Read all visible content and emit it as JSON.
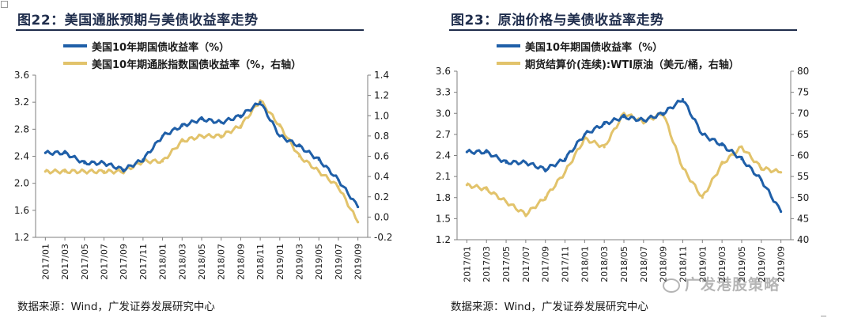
{
  "charts": [
    {
      "title": "图22：美国通胀预期与美债收益率走势",
      "source": "数据来源：Wind，广发证券发展研究中心",
      "colors": {
        "blue": "#1f5fa8",
        "gold": "#e2c36b"
      }
    },
    {
      "title": "图23：原油价格与美债收益率走势",
      "source": "数据来源：Wind，广发证券发展研究中心",
      "colors": {
        "blue": "#1f5fa8",
        "gold": "#e2c36b"
      }
    }
  ],
  "watermark": {
    "text": "广发港股策略"
  },
  "chart_data": [
    {
      "type": "line",
      "title": "图22：美国通胀预期与美债收益率走势",
      "x": [
        "2017/01",
        "2017/03",
        "2017/05",
        "2017/07",
        "2017/09",
        "2017/11",
        "2018/01",
        "2018/03",
        "2018/05",
        "2018/07",
        "2018/09",
        "2018/11",
        "2019/01",
        "2019/03",
        "2019/05",
        "2019/07",
        "2019/09"
      ],
      "ylim": [
        1.2,
        3.6
      ],
      "yticks": [
        "1.2",
        "1.6",
        "2.0",
        "2.4",
        "2.8",
        "3.2",
        "3.6"
      ],
      "y2lim": [
        -0.2,
        1.4
      ],
      "y2ticks": [
        "-0.2",
        "0.0",
        "0.2",
        "0.4",
        "0.6",
        "0.8",
        "1.0",
        "1.2",
        "1.4"
      ],
      "series": [
        {
          "name": "美国10年期国债收益率（%）",
          "axis": "left",
          "color": "#1f5fa8",
          "values": [
            2.45,
            2.45,
            2.3,
            2.3,
            2.2,
            2.35,
            2.7,
            2.85,
            2.95,
            2.9,
            3.0,
            3.2,
            2.7,
            2.55,
            2.35,
            2.05,
            1.65
          ]
        },
        {
          "name": "美国10年期通胀指数国债收益率（%，右轴）",
          "axis": "right",
          "color": "#e2c36b",
          "values": [
            0.45,
            0.45,
            0.45,
            0.45,
            0.45,
            0.55,
            0.55,
            0.75,
            0.8,
            0.8,
            0.9,
            1.15,
            0.9,
            0.6,
            0.45,
            0.3,
            -0.05
          ]
        }
      ]
    },
    {
      "type": "line",
      "title": "图23：原油价格与美债收益率走势",
      "x": [
        "2017/01",
        "2017/03",
        "2017/05",
        "2017/07",
        "2017/09",
        "2017/11",
        "2018/01",
        "2018/03",
        "2018/05",
        "2018/07",
        "2018/09",
        "2018/11",
        "2019/01",
        "2019/03",
        "2019/05",
        "2019/07",
        "2019/09"
      ],
      "ylim": [
        1.2,
        3.6
      ],
      "yticks": [
        "1.2",
        "1.5",
        "1.8",
        "2.1",
        "2.4",
        "2.7",
        "3.0",
        "3.3",
        "3.6"
      ],
      "y2lim": [
        40,
        80
      ],
      "y2ticks": [
        "40",
        "45",
        "50",
        "55",
        "60",
        "65",
        "70",
        "75",
        "80"
      ],
      "series": [
        {
          "name": "美国10年期国债收益率（%）",
          "axis": "left",
          "color": "#1f5fa8",
          "values": [
            2.45,
            2.45,
            2.3,
            2.3,
            2.2,
            2.35,
            2.7,
            2.85,
            2.95,
            2.9,
            3.0,
            3.2,
            2.7,
            2.55,
            2.35,
            2.05,
            1.6
          ]
        },
        {
          "name": "期货结算价(连续):WTI原油（美元/桶，右轴）",
          "axis": "right",
          "color": "#e2c36b",
          "values": [
            53,
            52,
            49,
            46,
            50,
            56,
            64,
            62,
            70,
            68,
            70,
            57,
            50,
            58,
            62,
            57,
            56
          ]
        }
      ]
    }
  ]
}
